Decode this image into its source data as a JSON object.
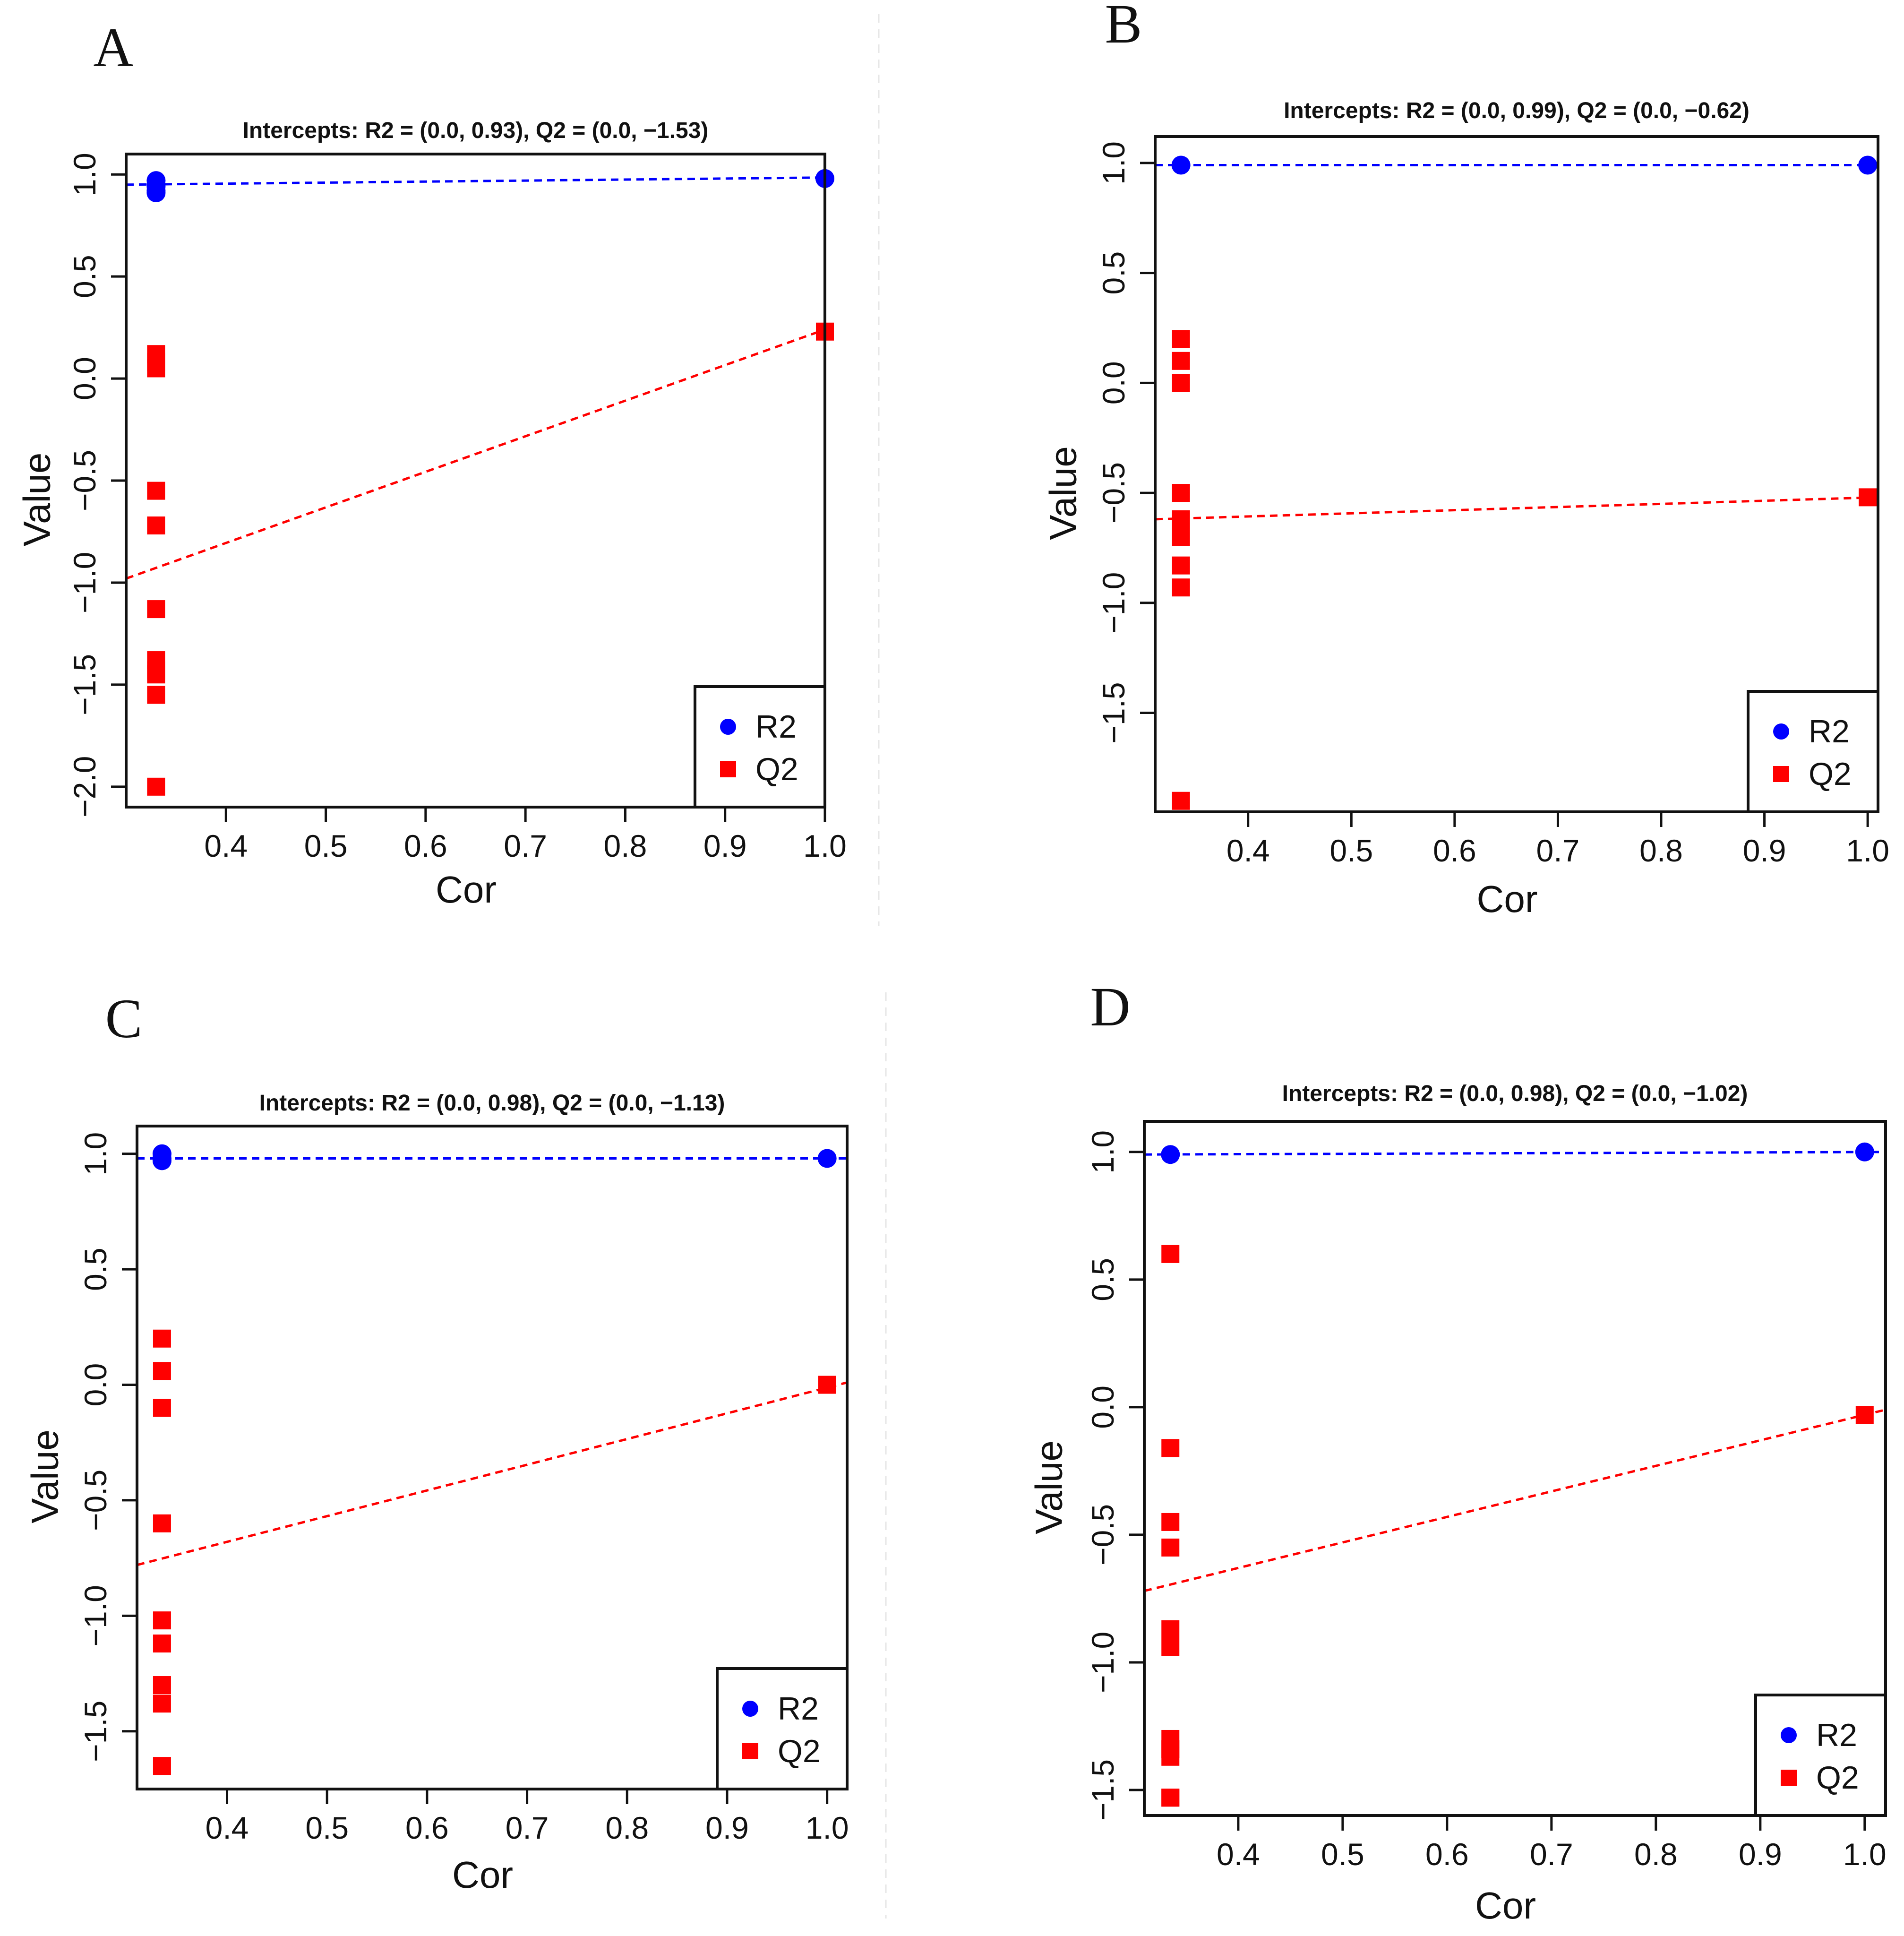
{
  "chart_data": [
    {
      "panel": "A",
      "type": "scatter",
      "title": "Intercepts: R2 = (0.0, 0.93), Q2 = (0.0, −1.53)",
      "xlabel": "Cor",
      "ylabel": "Value",
      "xlim": [
        0.3,
        1.0
      ],
      "ylim": [
        -2.1,
        1.1
      ],
      "x_ticks": [
        0.4,
        0.5,
        0.6,
        0.7,
        0.8,
        0.9,
        1.0
      ],
      "x_tick_labels": [
        "0.4",
        "0.5",
        "0.6",
        "0.7",
        "0.8",
        "0.9",
        "1.0"
      ],
      "y_ticks": [
        -2.0,
        -1.5,
        -1.0,
        -0.5,
        0.0,
        0.5,
        1.0
      ],
      "y_tick_labels": [
        "−2.0",
        "−1.5",
        "−1.0",
        "−0.5",
        "0.0",
        "0.5",
        "1.0"
      ],
      "legend": {
        "position": "bottom-right",
        "entries": [
          "R2",
          "Q2"
        ]
      },
      "series": [
        {
          "name": "R2",
          "marker": "circle",
          "color": "#0000ff",
          "x": [
            0.33,
            0.33,
            0.33,
            0.33,
            0.33,
            1.0
          ],
          "y": [
            0.97,
            0.95,
            0.94,
            0.92,
            0.91,
            0.98
          ],
          "line": {
            "x": [
              0.3,
              1.0
            ],
            "y": [
              0.95,
              0.985
            ]
          }
        },
        {
          "name": "Q2",
          "marker": "square",
          "color": "#ff0000",
          "x": [
            0.33,
            0.33,
            0.33,
            0.33,
            0.33,
            0.33,
            0.33,
            0.33,
            0.33,
            0.33,
            0.33,
            1.0
          ],
          "y": [
            0.12,
            0.08,
            0.05,
            -0.55,
            -0.72,
            -1.13,
            -1.38,
            -1.43,
            -1.45,
            -1.55,
            -2.0,
            0.23
          ],
          "line": {
            "x": [
              0.3,
              1.0
            ],
            "y": [
              -0.98,
              0.24
            ]
          }
        }
      ]
    },
    {
      "panel": "B",
      "type": "scatter",
      "title": "Intercepts: R2 = (0.0, 0.99), Q2 = (0.0, −0.62)",
      "xlabel": "Cor",
      "ylabel": "Value",
      "xlim": [
        0.31,
        1.01
      ],
      "ylim": [
        -1.95,
        1.12
      ],
      "x_ticks": [
        0.4,
        0.5,
        0.6,
        0.7,
        0.8,
        0.9,
        1.0
      ],
      "x_tick_labels": [
        "0.4",
        "0.5",
        "0.6",
        "0.7",
        "0.8",
        "0.9",
        "1.0"
      ],
      "y_ticks": [
        -1.5,
        -1.0,
        -0.5,
        0.0,
        0.5,
        1.0
      ],
      "y_tick_labels": [
        "−1.5",
        "−1.0",
        "−0.5",
        "0.0",
        "0.5",
        "1.0"
      ],
      "legend": {
        "position": "bottom-right",
        "entries": [
          "R2",
          "Q2"
        ]
      },
      "series": [
        {
          "name": "R2",
          "marker": "circle",
          "color": "#0000ff",
          "x": [
            0.335,
            1.0
          ],
          "y": [
            0.99,
            0.99
          ],
          "line": {
            "x": [
              0.31,
              1.01
            ],
            "y": [
              0.99,
              0.99
            ]
          }
        },
        {
          "name": "Q2",
          "marker": "square",
          "color": "#ff0000",
          "x": [
            0.335,
            0.335,
            0.335,
            0.335,
            0.335,
            0.335,
            0.335,
            0.335,
            0.335,
            1.0
          ],
          "y": [
            0.2,
            0.1,
            0.0,
            -0.5,
            -0.62,
            -0.7,
            -0.83,
            -0.93,
            -1.9,
            -0.52
          ],
          "line": {
            "x": [
              0.31,
              1.01
            ],
            "y": [
              -0.62,
              -0.52
            ]
          }
        }
      ]
    },
    {
      "panel": "C",
      "type": "scatter",
      "title": "Intercepts: R2 = (0.0, 0.98), Q2 = (0.0, −1.13)",
      "xlabel": "Cor",
      "ylabel": "Value",
      "xlim": [
        0.31,
        1.02
      ],
      "ylim": [
        -1.75,
        1.12
      ],
      "x_ticks": [
        0.4,
        0.5,
        0.6,
        0.7,
        0.8,
        0.9,
        1.0
      ],
      "x_tick_labels": [
        "0.4",
        "0.5",
        "0.6",
        "0.7",
        "0.8",
        "0.9",
        "1.0"
      ],
      "y_ticks": [
        -1.5,
        -1.0,
        -0.5,
        0.0,
        0.5,
        1.0
      ],
      "y_tick_labels": [
        "−1.5",
        "−1.0",
        "−0.5",
        "0.0",
        "0.5",
        "1.0"
      ],
      "legend": {
        "position": "bottom-right",
        "entries": [
          "R2",
          "Q2"
        ]
      },
      "series": [
        {
          "name": "R2",
          "marker": "circle",
          "color": "#0000ff",
          "x": [
            0.335,
            0.335,
            0.335,
            1.0
          ],
          "y": [
            1.0,
            0.98,
            0.97,
            0.98
          ],
          "line": {
            "x": [
              0.31,
              1.02
            ],
            "y": [
              0.98,
              0.98
            ]
          }
        },
        {
          "name": "Q2",
          "marker": "square",
          "color": "#ff0000",
          "x": [
            0.335,
            0.335,
            0.335,
            0.335,
            0.335,
            0.335,
            0.335,
            0.335,
            0.335,
            1.0
          ],
          "y": [
            0.2,
            0.06,
            -0.1,
            -0.6,
            -1.02,
            -1.12,
            -1.3,
            -1.38,
            -1.65,
            0.0
          ],
          "line": {
            "x": [
              0.31,
              1.02
            ],
            "y": [
              -0.78,
              0.01
            ]
          }
        }
      ]
    },
    {
      "panel": "D",
      "type": "scatter",
      "title": "Intercepts: R2 = (0.0, 0.98), Q2 = (0.0, −1.02)",
      "xlabel": "Cor",
      "ylabel": "Value",
      "xlim": [
        0.31,
        1.02
      ],
      "ylim": [
        -1.6,
        1.12
      ],
      "x_ticks": [
        0.4,
        0.5,
        0.6,
        0.7,
        0.8,
        0.9,
        1.0
      ],
      "x_tick_labels": [
        "0.4",
        "0.5",
        "0.6",
        "0.7",
        "0.8",
        "0.9",
        "1.0"
      ],
      "y_ticks": [
        -1.5,
        -1.0,
        -0.5,
        0.0,
        0.5,
        1.0
      ],
      "y_tick_labels": [
        "−1.5",
        "−1.0",
        "−0.5",
        "0.0",
        "0.5",
        "1.0"
      ],
      "legend": {
        "position": "bottom-right",
        "entries": [
          "R2",
          "Q2"
        ]
      },
      "series": [
        {
          "name": "R2",
          "marker": "circle",
          "color": "#0000ff",
          "x": [
            0.335,
            1.0
          ],
          "y": [
            0.99,
            1.0
          ],
          "line": {
            "x": [
              0.31,
              1.02
            ],
            "y": [
              0.99,
              1.0
            ]
          }
        },
        {
          "name": "Q2",
          "marker": "square",
          "color": "#ff0000",
          "x": [
            0.335,
            0.335,
            0.335,
            0.335,
            0.335,
            0.335,
            0.335,
            0.335,
            0.335,
            0.335,
            0.335,
            1.0
          ],
          "y": [
            0.6,
            -0.16,
            -0.45,
            -0.55,
            -0.87,
            -0.94,
            -1.3,
            -1.34,
            -1.37,
            -1.53,
            -1.53,
            -0.03
          ],
          "line": {
            "x": [
              0.31,
              1.02
            ],
            "y": [
              -0.72,
              -0.01
            ]
          }
        }
      ]
    }
  ]
}
